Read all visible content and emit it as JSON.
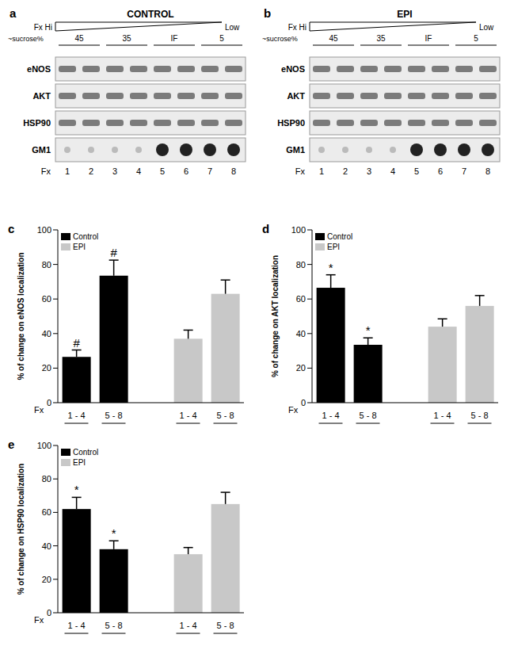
{
  "blots": [
    {
      "panel": "a",
      "title": "CONTROL",
      "gradient": [
        "Fx Hi",
        "Low"
      ],
      "sucrose_label": "~sucrose%",
      "sucrose": [
        "45",
        "35",
        "IF",
        "5"
      ],
      "rows": [
        "eNOS",
        "AKT",
        "HSP90",
        "GM1"
      ],
      "fractions_label": "Fx",
      "fractions": [
        1,
        2,
        3,
        4,
        5,
        6,
        7,
        8
      ]
    },
    {
      "panel": "b",
      "title": "EPI",
      "gradient": [
        "Fx Hi",
        "Low"
      ],
      "sucrose_label": "~sucrose%",
      "sucrose": [
        "45",
        "35",
        "IF",
        "5"
      ],
      "rows": [
        "eNOS",
        "AKT",
        "HSP90",
        "GM1"
      ],
      "fractions_label": "Fx",
      "fractions": [
        1,
        2,
        3,
        4,
        5,
        6,
        7,
        8
      ]
    }
  ],
  "chart_data": [
    {
      "panel": "c",
      "type": "bar",
      "y_label": "% of change on eNOS localization",
      "x_label": "Fx",
      "categories": [
        "1 - 4",
        "5 - 8",
        null,
        "1 - 4",
        "5 - 8"
      ],
      "series": [
        {
          "name": "Control",
          "color": "#000000",
          "values": [
            26.5,
            73.5,
            null,
            null,
            null
          ],
          "errors": [
            4,
            9,
            null,
            null,
            null
          ],
          "annotations": [
            "#",
            "#",
            null,
            null,
            null
          ]
        },
        {
          "name": "EPI",
          "color": "#c8c8c8",
          "values": [
            null,
            null,
            null,
            37,
            63
          ],
          "errors": [
            null,
            null,
            null,
            5,
            8
          ]
        }
      ],
      "ylim": [
        0,
        100
      ],
      "yticks": [
        0,
        20,
        40,
        60,
        80,
        100
      ],
      "legend": "top-left"
    },
    {
      "panel": "d",
      "type": "bar",
      "y_label": "% of change on AKT localization",
      "x_label": "Fx",
      "categories": [
        "1 - 4",
        "5 - 8",
        null,
        "1 - 4",
        "5 - 8"
      ],
      "series": [
        {
          "name": "Control",
          "color": "#000000",
          "values": [
            66.5,
            33.5,
            null,
            null,
            null
          ],
          "errors": [
            7.5,
            4,
            null,
            null,
            null
          ],
          "annotations": [
            "*",
            "*",
            null,
            null,
            null
          ]
        },
        {
          "name": "EPI",
          "color": "#c8c8c8",
          "values": [
            null,
            null,
            null,
            44,
            56
          ],
          "errors": [
            null,
            null,
            null,
            4.5,
            6
          ]
        }
      ],
      "ylim": [
        0,
        100
      ],
      "yticks": [
        0,
        20,
        40,
        60,
        80,
        100
      ],
      "legend": "top-left"
    },
    {
      "panel": "e",
      "type": "bar",
      "y_label": "% of change on HSP90 localization",
      "x_label": "Fx",
      "categories": [
        "1 - 4",
        "5 - 8",
        null,
        "1 - 4",
        "5 - 8"
      ],
      "series": [
        {
          "name": "Control",
          "color": "#000000",
          "values": [
            62,
            38,
            null,
            null,
            null
          ],
          "errors": [
            7,
            5,
            null,
            null,
            null
          ],
          "annotations": [
            "*",
            "*",
            null,
            null,
            null
          ]
        },
        {
          "name": "EPI",
          "color": "#c8c8c8",
          "values": [
            null,
            null,
            null,
            35,
            65
          ],
          "errors": [
            null,
            null,
            null,
            4,
            7
          ]
        }
      ],
      "ylim": [
        0,
        100
      ],
      "yticks": [
        0,
        20,
        40,
        60,
        80,
        100
      ],
      "legend": "top-left"
    }
  ]
}
